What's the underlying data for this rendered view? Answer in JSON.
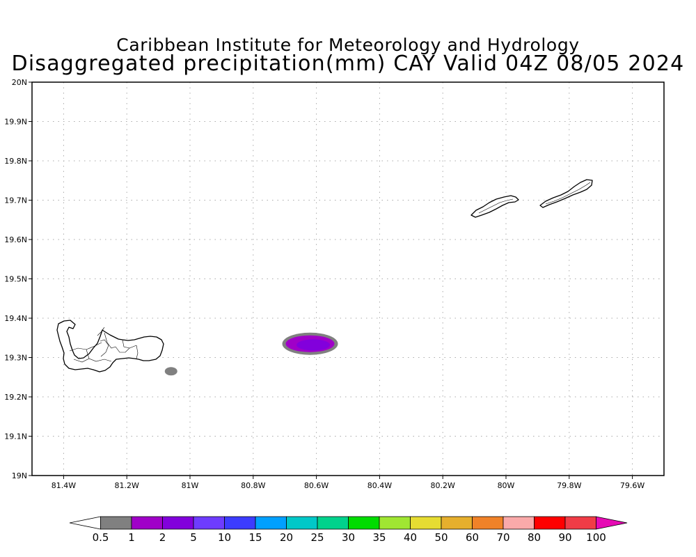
{
  "header": {
    "title": "Caribbean Institute for Meteorology and Hydrology",
    "subtitle": "Disaggregated precipitation(mm) CAY Valid 04Z 08/05 2024"
  },
  "map": {
    "lon_range": [
      -81.5,
      -79.5
    ],
    "lat_range": [
      19.0,
      20.0
    ],
    "grid": "dotted",
    "x_ticks": [
      {
        "value": -81.4,
        "label": "81.4W"
      },
      {
        "value": -81.2,
        "label": "81.2W"
      },
      {
        "value": -81.0,
        "label": "81W"
      },
      {
        "value": -80.8,
        "label": "80.8W"
      },
      {
        "value": -80.6,
        "label": "80.6W"
      },
      {
        "value": -80.4,
        "label": "80.4W"
      },
      {
        "value": -80.2,
        "label": "80.2W"
      },
      {
        "value": -80.0,
        "label": "80W"
      },
      {
        "value": -79.8,
        "label": "79.8W"
      },
      {
        "value": -79.6,
        "label": "79.6W"
      }
    ],
    "y_ticks": [
      {
        "value": 19.0,
        "label": "19N"
      },
      {
        "value": 19.1,
        "label": "19.1N"
      },
      {
        "value": 19.2,
        "label": "19.2N"
      },
      {
        "value": 19.3,
        "label": "19.3N"
      },
      {
        "value": 19.4,
        "label": "19.4N"
      },
      {
        "value": 19.5,
        "label": "19.5N"
      },
      {
        "value": 19.6,
        "label": "19.6N"
      },
      {
        "value": 19.7,
        "label": "19.7N"
      },
      {
        "value": 19.8,
        "label": "19.8N"
      },
      {
        "value": 19.9,
        "label": "19.9N"
      },
      {
        "value": 20.0,
        "label": "20N"
      }
    ],
    "precip_cells": [
      {
        "lon": -80.62,
        "lat": 19.335,
        "range": "0.5-1",
        "color": "#808080"
      },
      {
        "lon": -80.62,
        "lat": 19.335,
        "range": "1-2",
        "color": "#a000c8"
      },
      {
        "lon": -80.61,
        "lat": 19.332,
        "range": "2-5",
        "color": "#8200dc"
      },
      {
        "lon": -81.06,
        "lat": 19.265,
        "range": "0.5-1",
        "color": "#808080"
      }
    ]
  },
  "colorbar": {
    "labels": [
      "0.5",
      "1",
      "2",
      "5",
      "10",
      "15",
      "20",
      "25",
      "30",
      "35",
      "40",
      "50",
      "60",
      "70",
      "80",
      "90",
      "100"
    ],
    "colors": [
      "#ffffff",
      "#808080",
      "#a000c8",
      "#8200dc",
      "#6e3cff",
      "#3c3cff",
      "#00a0ff",
      "#00c8c8",
      "#00d28c",
      "#00dc00",
      "#a0e632",
      "#e6dc32",
      "#e6af2d",
      "#f08228",
      "#faaaaa",
      "#ff0000",
      "#f03c46",
      "#e60ab4"
    ]
  }
}
